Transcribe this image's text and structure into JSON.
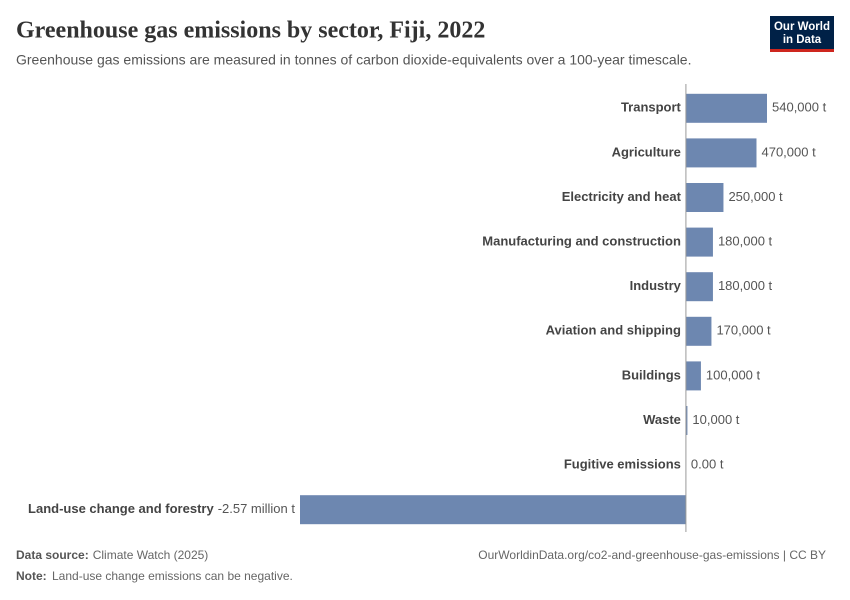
{
  "chart_data": {
    "type": "bar",
    "orientation": "horizontal",
    "title": "Greenhouse gas emissions by sector, Fiji, 2022",
    "subtitle": "Greenhouse gas emissions are measured in tonnes of carbon dioxide-equivalents over a 100-year timescale.",
    "logo": [
      "Our World",
      "in Data"
    ],
    "categories": [
      "Transport",
      "Agriculture",
      "Electricity and heat",
      "Manufacturing and construction",
      "Industry",
      "Aviation and shipping",
      "Buildings",
      "Waste",
      "Fugitive emissions",
      "Land-use change and forestry"
    ],
    "values": [
      540000,
      470000,
      250000,
      180000,
      180000,
      170000,
      100000,
      10000,
      0,
      -2570000
    ],
    "value_labels": [
      "540,000 t",
      "470,000 t",
      "250,000 t",
      "180,000 t",
      "180,000 t",
      "170,000 t",
      "100,000 t",
      "10,000 t",
      "0.00 t",
      "-2.57 million t"
    ],
    "color": "#6d87b0",
    "xlim": [
      -2570000,
      540000
    ],
    "source_label": "Data source:",
    "source": "Climate Watch (2025)",
    "url": "OurWorldinData.org/co2-and-greenhouse-gas-emissions | CC BY",
    "note_label": "Note:",
    "note": "Land-use change emissions can be negative."
  }
}
